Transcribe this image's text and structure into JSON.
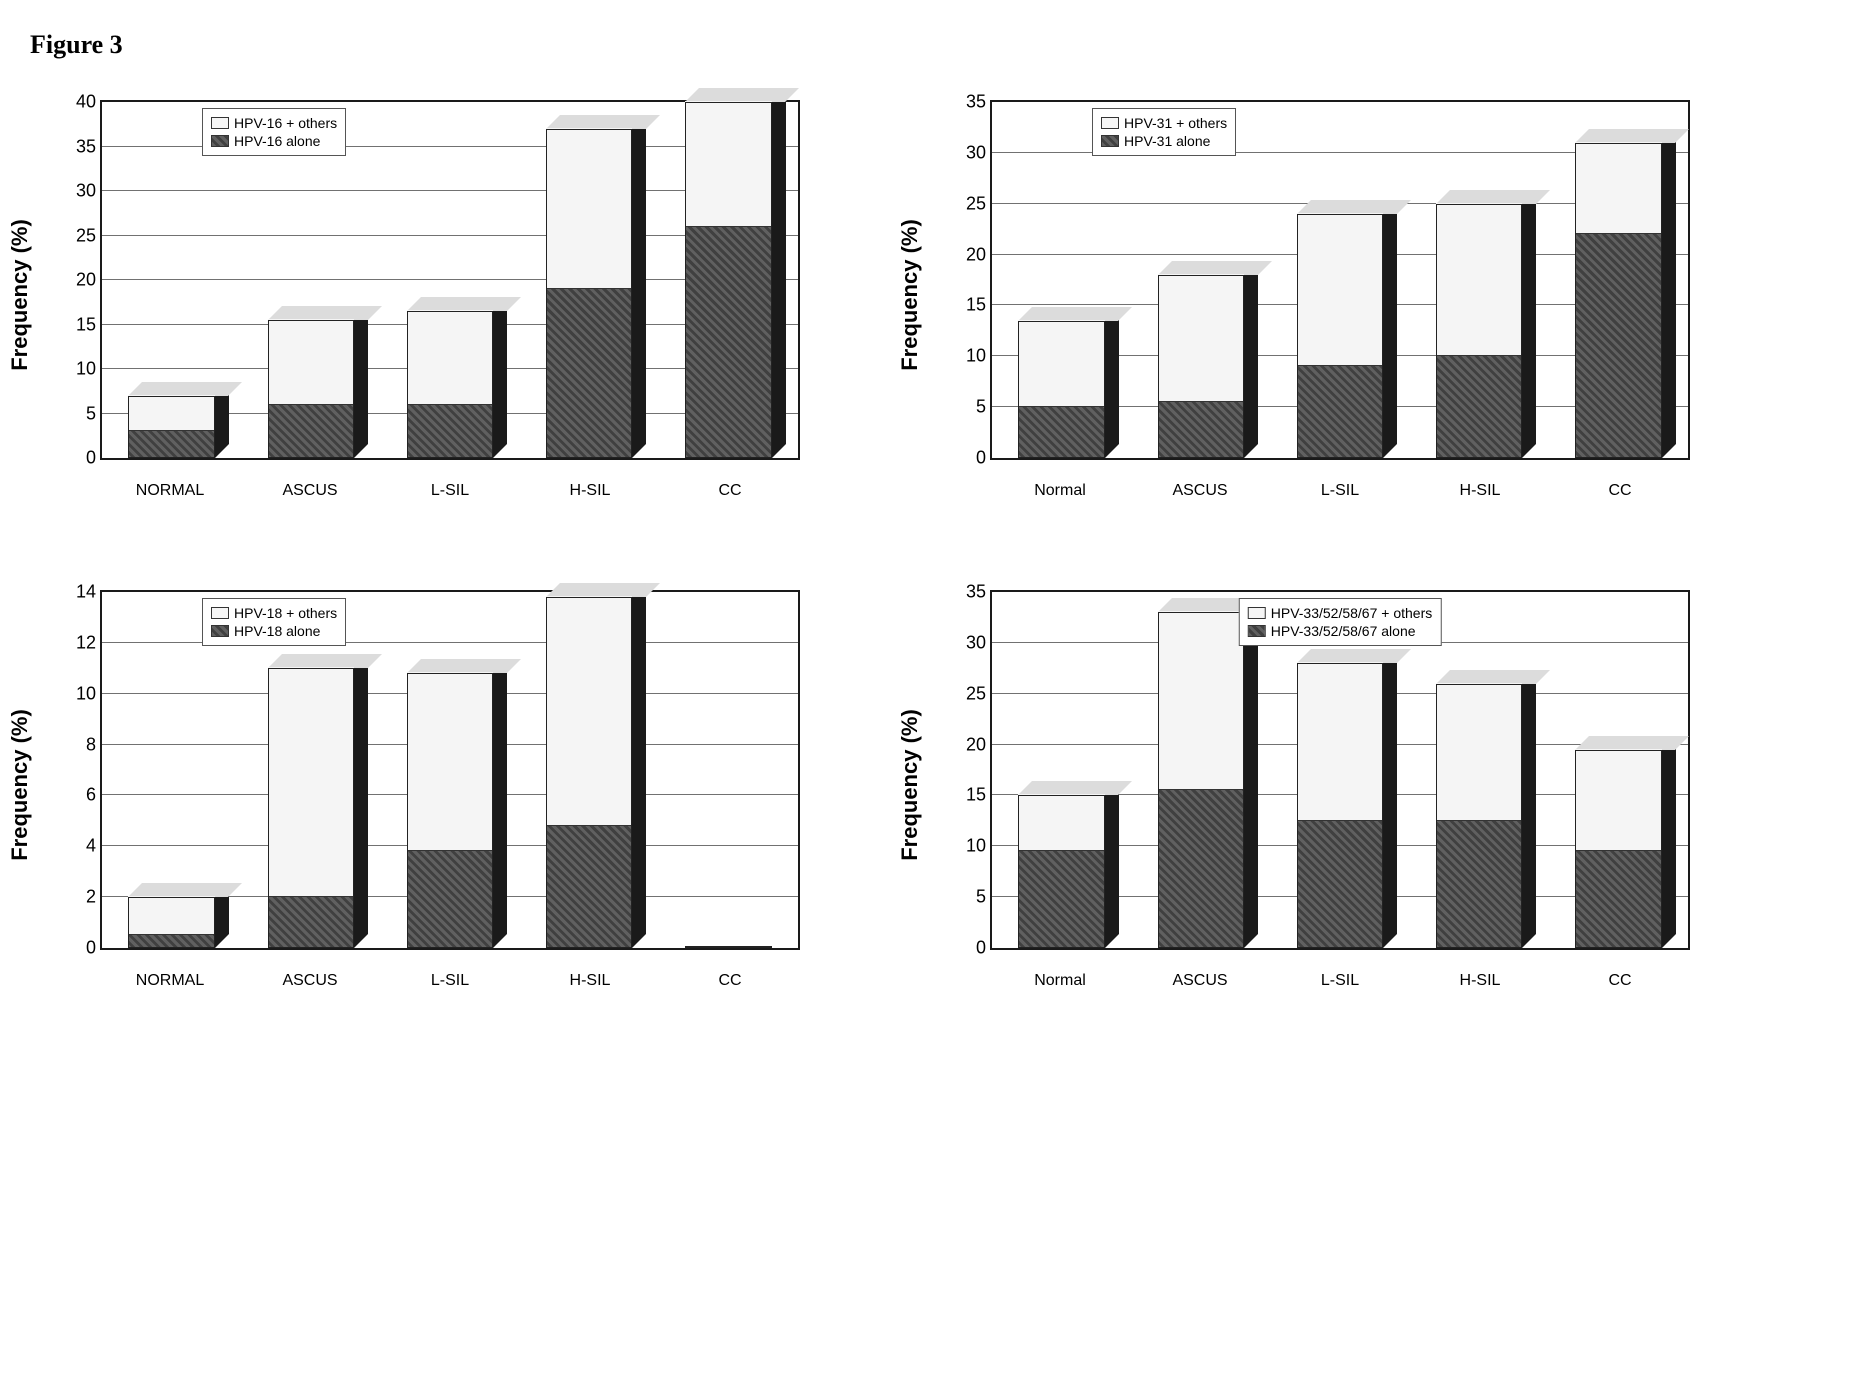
{
  "title": "Figure 3",
  "ylabel": "Frequency (%)",
  "colors": {
    "alone_fill": "#5a5a5a",
    "alone_pattern": "repeating-linear-gradient(45deg,#606060 0 3px,#404040 3px 6px)",
    "others_fill": "#f5f5f5",
    "top_face": "#dcdcdc",
    "side_face": "#1a1a1a",
    "grid_color": "#4d4d4d",
    "border_color": "#1a1a1a"
  },
  "charts": [
    {
      "categories": [
        "NORMAL",
        "ASCUS",
        "L-SIL",
        "H-SIL",
        "CC"
      ],
      "ymax": 40,
      "ytick_step": 5,
      "legend_pos": "left",
      "series": [
        {
          "label": "HPV-16 + others",
          "fill": "others"
        },
        {
          "label": "HPV-16 alone",
          "fill": "alone"
        }
      ],
      "values_alone": [
        3,
        6,
        6,
        19,
        26
      ],
      "values_total": [
        7,
        15.5,
        16.5,
        37,
        40
      ]
    },
    {
      "categories": [
        "Normal",
        "ASCUS",
        "L-SIL",
        "H-SIL",
        "CC"
      ],
      "ymax": 35,
      "ytick_step": 5,
      "legend_pos": "left",
      "series": [
        {
          "label": "HPV-31 + others",
          "fill": "others"
        },
        {
          "label": "HPV-31 alone",
          "fill": "alone"
        }
      ],
      "values_alone": [
        5,
        5.5,
        9,
        10,
        22
      ],
      "values_total": [
        13.5,
        18,
        24,
        25,
        31
      ]
    },
    {
      "categories": [
        "NORMAL",
        "ASCUS",
        "L-SIL",
        "H-SIL",
        "CC"
      ],
      "ymax": 14,
      "ytick_step": 2,
      "legend_pos": "left",
      "series": [
        {
          "label": "HPV-18 + others",
          "fill": "others"
        },
        {
          "label": "HPV-18 alone",
          "fill": "alone"
        }
      ],
      "values_alone": [
        0.5,
        2,
        3.8,
        4.8,
        0
      ],
      "values_total": [
        2,
        11,
        10.8,
        13.8,
        0
      ]
    },
    {
      "categories": [
        "Normal",
        "ASCUS",
        "L-SIL",
        "H-SIL",
        "CC"
      ],
      "ymax": 35,
      "ytick_step": 5,
      "legend_pos": "center",
      "series": [
        {
          "label": "HPV-33/52/58/67 + others",
          "fill": "others"
        },
        {
          "label": "HPV-33/52/58/67 alone",
          "fill": "alone"
        }
      ],
      "values_alone": [
        9.5,
        15.5,
        12.5,
        12.5,
        9.5
      ],
      "values_total": [
        15,
        33,
        28,
        26,
        19.5
      ]
    }
  ]
}
